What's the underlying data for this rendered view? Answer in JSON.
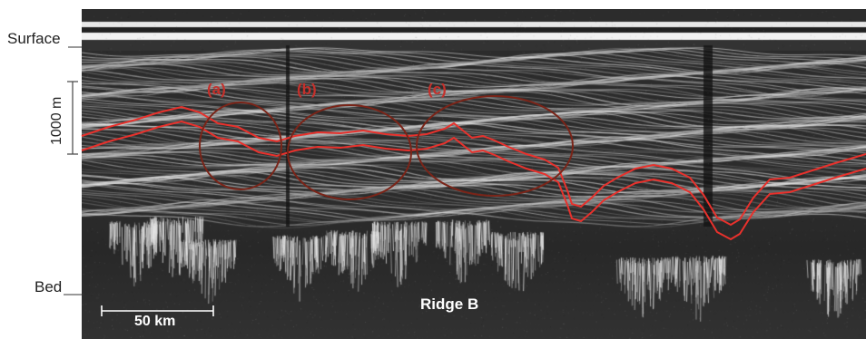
{
  "labels": {
    "surface": "Surface",
    "bed": "Bed",
    "depth_scale": "1000 m",
    "feature_a": "(a)",
    "feature_b": "(b)",
    "feature_c": "(c)",
    "distance_scale": "50 km",
    "ridge": "Ridge B"
  },
  "colors": {
    "trace_line": "#e8312c",
    "ellipse": "#7a2418",
    "feature_label": "#c5302b",
    "annotation_white": "#ffffff",
    "radar_background": "#2c2c2c"
  },
  "icons": {
    "depth_bracket": "scale-bracket-icon",
    "distance_bar": "scale-bar-icon"
  }
}
